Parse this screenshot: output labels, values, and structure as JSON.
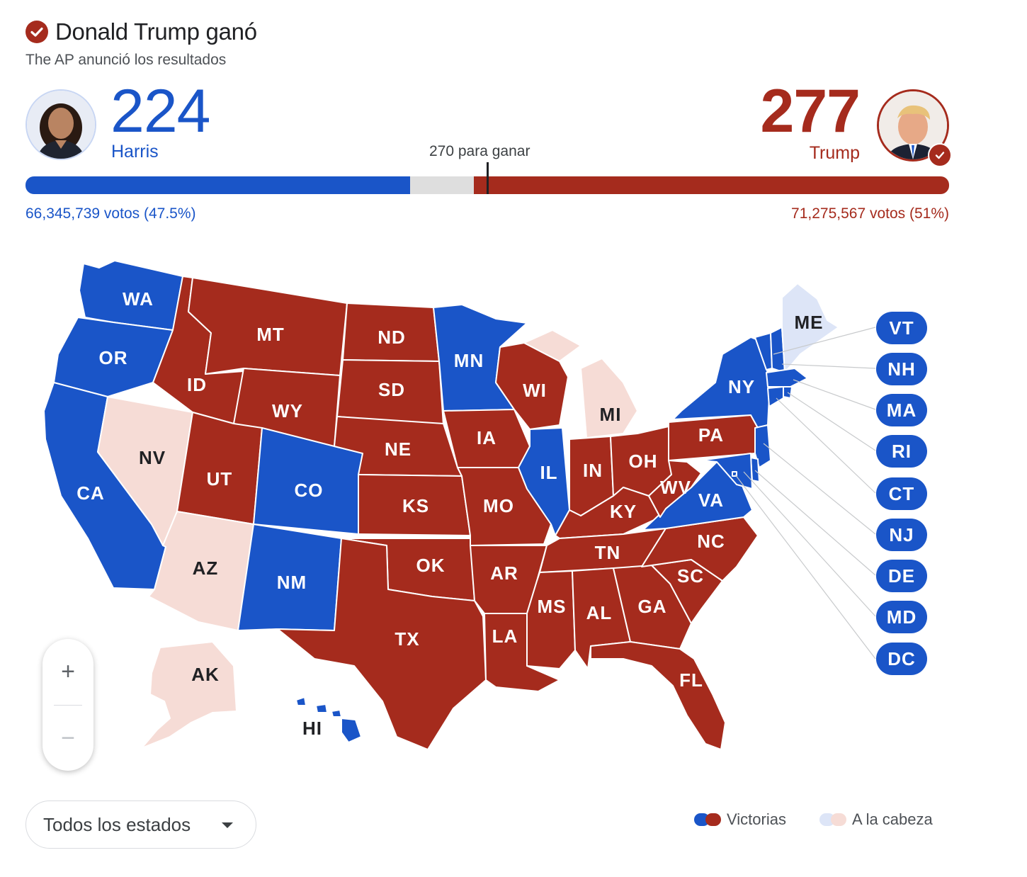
{
  "header": {
    "headline": "Donald Trump ganó",
    "subtitle": "The AP anunció los resultados"
  },
  "candidates": {
    "left": {
      "name": "Harris",
      "electoral_votes": "224",
      "popular_votes": "66,345,739 votos (47.5%)",
      "color": "#1a55c8"
    },
    "right": {
      "name": "Trump",
      "electoral_votes": "277",
      "popular_votes": "71,275,567 votos (51%)",
      "color": "#a52b1d",
      "winner": true
    }
  },
  "bar": {
    "threshold_label": "270 para ganar",
    "total": 538,
    "dem": 224,
    "rep": 277,
    "uncalled": 37
  },
  "colors": {
    "dem_win": "#1a55c8",
    "rep_win": "#a52b1d",
    "dem_lead": "#dde5f7",
    "rep_lead": "#f6dcd6"
  },
  "states": [
    {
      "abbr": "WA",
      "status": "dem_win"
    },
    {
      "abbr": "OR",
      "status": "dem_win"
    },
    {
      "abbr": "CA",
      "status": "dem_win"
    },
    {
      "abbr": "NV",
      "status": "rep_lead"
    },
    {
      "abbr": "ID",
      "status": "rep_win"
    },
    {
      "abbr": "MT",
      "status": "rep_win"
    },
    {
      "abbr": "WY",
      "status": "rep_win"
    },
    {
      "abbr": "UT",
      "status": "rep_win"
    },
    {
      "abbr": "AZ",
      "status": "rep_lead"
    },
    {
      "abbr": "CO",
      "status": "dem_win"
    },
    {
      "abbr": "NM",
      "status": "dem_win"
    },
    {
      "abbr": "ND",
      "status": "rep_win"
    },
    {
      "abbr": "SD",
      "status": "rep_win"
    },
    {
      "abbr": "NE",
      "status": "rep_win"
    },
    {
      "abbr": "KS",
      "status": "rep_win"
    },
    {
      "abbr": "OK",
      "status": "rep_win"
    },
    {
      "abbr": "TX",
      "status": "rep_win"
    },
    {
      "abbr": "MN",
      "status": "dem_win"
    },
    {
      "abbr": "IA",
      "status": "rep_win"
    },
    {
      "abbr": "MO",
      "status": "rep_win"
    },
    {
      "abbr": "AR",
      "status": "rep_win"
    },
    {
      "abbr": "LA",
      "status": "rep_win"
    },
    {
      "abbr": "WI",
      "status": "rep_win"
    },
    {
      "abbr": "IL",
      "status": "dem_win"
    },
    {
      "abbr": "MI",
      "status": "rep_lead"
    },
    {
      "abbr": "IN",
      "status": "rep_win"
    },
    {
      "abbr": "OH",
      "status": "rep_win"
    },
    {
      "abbr": "KY",
      "status": "rep_win"
    },
    {
      "abbr": "TN",
      "status": "rep_win"
    },
    {
      "abbr": "MS",
      "status": "rep_win"
    },
    {
      "abbr": "AL",
      "status": "rep_win"
    },
    {
      "abbr": "GA",
      "status": "rep_win"
    },
    {
      "abbr": "FL",
      "status": "rep_win"
    },
    {
      "abbr": "SC",
      "status": "rep_win"
    },
    {
      "abbr": "NC",
      "status": "rep_win"
    },
    {
      "abbr": "VA",
      "status": "dem_win"
    },
    {
      "abbr": "WV",
      "status": "rep_win"
    },
    {
      "abbr": "PA",
      "status": "rep_win"
    },
    {
      "abbr": "NY",
      "status": "dem_win"
    },
    {
      "abbr": "ME",
      "status": "dem_lead"
    },
    {
      "abbr": "AK",
      "status": "rep_lead"
    },
    {
      "abbr": "HI",
      "status": "dem_win"
    }
  ],
  "small_states": [
    "VT",
    "NH",
    "MA",
    "RI",
    "CT",
    "NJ",
    "DE",
    "MD",
    "DC"
  ],
  "controls": {
    "zoom_in": "+",
    "zoom_out": "−",
    "dropdown_label": "Todos los estados"
  },
  "legend": {
    "wins": "Victorias",
    "leading": "A la cabeza"
  },
  "icons": {
    "headline": "check-circle-icon",
    "winner": "check-icon",
    "dropdown": "caret-down-icon"
  }
}
